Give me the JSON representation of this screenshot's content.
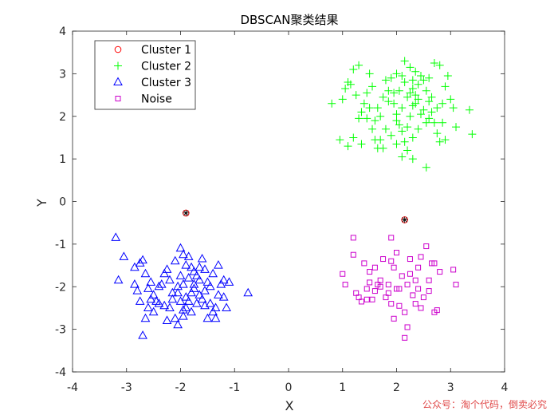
{
  "watermark": "公众号：淘个代码，倒卖必究",
  "chart_data": {
    "type": "scatter",
    "title": "DBSCAN聚类结果",
    "xlabel": "X",
    "ylabel": "Y",
    "xlim": [
      -4,
      4
    ],
    "ylim": [
      -4,
      4
    ],
    "xticks": [
      -4,
      -3,
      -2,
      -1,
      0,
      1,
      2,
      3,
      4
    ],
    "yticks": [
      -4,
      -3,
      -2,
      -1,
      0,
      1,
      2,
      3,
      4
    ],
    "grid": false,
    "legend_position": "top-left",
    "series": [
      {
        "name": "Cluster 1",
        "marker": "circle",
        "color": "#ff0000",
        "points": [
          [
            -1.9,
            -0.27
          ],
          [
            2.15,
            -0.43
          ]
        ]
      },
      {
        "name": "Cluster 2",
        "marker": "plus",
        "color": "#00ff00",
        "points": [
          [
            0.8,
            2.3
          ],
          [
            1.0,
            2.4
          ],
          [
            1.05,
            2.65
          ],
          [
            1.1,
            2.8
          ],
          [
            1.15,
            2.75
          ],
          [
            1.2,
            3.1
          ],
          [
            1.3,
            3.2
          ],
          [
            0.95,
            1.45
          ],
          [
            1.1,
            1.3
          ],
          [
            1.2,
            1.5
          ],
          [
            1.3,
            1.95
          ],
          [
            1.35,
            2.1
          ],
          [
            1.4,
            2.3
          ],
          [
            1.45,
            2.55
          ],
          [
            1.5,
            2.2
          ],
          [
            1.55,
            1.7
          ],
          [
            1.6,
            1.45
          ],
          [
            1.65,
            1.25
          ],
          [
            1.7,
            2.0
          ],
          [
            1.75,
            2.45
          ],
          [
            1.8,
            2.85
          ],
          [
            1.85,
            2.6
          ],
          [
            1.9,
            2.9
          ],
          [
            1.95,
            2.3
          ],
          [
            2.0,
            2.05
          ],
          [
            2.05,
            1.8
          ],
          [
            2.1,
            1.65
          ],
          [
            2.15,
            1.4
          ],
          [
            2.2,
            1.75
          ],
          [
            2.25,
            2.0
          ],
          [
            2.3,
            2.25
          ],
          [
            2.35,
            2.5
          ],
          [
            2.4,
            2.75
          ],
          [
            2.45,
            2.95
          ],
          [
            2.5,
            2.85
          ],
          [
            2.55,
            2.6
          ],
          [
            2.6,
            2.35
          ],
          [
            2.65,
            2.1
          ],
          [
            2.7,
            1.85
          ],
          [
            2.75,
            1.6
          ],
          [
            2.8,
            1.4
          ],
          [
            2.85,
            2.3
          ],
          [
            2.9,
            2.7
          ],
          [
            2.95,
            2.95
          ],
          [
            3.0,
            2.4
          ],
          [
            3.05,
            2.2
          ],
          [
            3.1,
            1.75
          ],
          [
            3.35,
            2.15
          ],
          [
            3.4,
            1.58
          ],
          [
            2.15,
            3.3
          ],
          [
            2.25,
            3.15
          ],
          [
            2.35,
            3.05
          ],
          [
            2.7,
            3.25
          ],
          [
            2.8,
            3.2
          ],
          [
            2.0,
            3.0
          ],
          [
            1.5,
            3.0
          ],
          [
            2.2,
            1.2
          ],
          [
            2.3,
            1.0
          ],
          [
            2.55,
            0.8
          ],
          [
            2.1,
            1.05
          ],
          [
            1.75,
            1.25
          ],
          [
            1.9,
            1.55
          ],
          [
            2.0,
            1.9
          ],
          [
            2.1,
            2.2
          ],
          [
            2.2,
            2.45
          ],
          [
            2.3,
            2.65
          ],
          [
            2.4,
            2.4
          ],
          [
            2.5,
            2.15
          ],
          [
            2.6,
            1.95
          ],
          [
            2.4,
            1.7
          ],
          [
            2.3,
            1.5
          ],
          [
            1.8,
            1.7
          ],
          [
            1.7,
            1.45
          ],
          [
            1.6,
            1.9
          ],
          [
            1.65,
            2.2
          ],
          [
            1.95,
            2.55
          ],
          [
            2.05,
            2.6
          ],
          [
            2.15,
            2.8
          ],
          [
            2.25,
            2.55
          ],
          [
            2.35,
            2.3
          ],
          [
            2.45,
            2.05
          ],
          [
            2.55,
            1.85
          ],
          [
            2.65,
            2.45
          ],
          [
            2.75,
            2.2
          ],
          [
            1.45,
            1.95
          ],
          [
            1.25,
            2.5
          ],
          [
            1.35,
            1.35
          ],
          [
            2.0,
            1.35
          ],
          [
            2.85,
            1.85
          ],
          [
            2.9,
            1.45
          ],
          [
            2.1,
            2.95
          ],
          [
            2.3,
            2.85
          ],
          [
            1.85,
            2.35
          ],
          [
            1.55,
            2.7
          ],
          [
            2.6,
            2.9
          ]
        ]
      },
      {
        "name": "Cluster 3",
        "marker": "triangle",
        "color": "#0000ff",
        "points": [
          [
            -3.2,
            -0.85
          ],
          [
            -3.15,
            -1.85
          ],
          [
            -3.05,
            -1.3
          ],
          [
            -2.85,
            -1.55
          ],
          [
            -2.75,
            -1.45
          ],
          [
            -2.7,
            -1.38
          ],
          [
            -2.65,
            -1.7
          ],
          [
            -2.6,
            -2.05
          ],
          [
            -2.55,
            -1.9
          ],
          [
            -2.5,
            -2.2
          ],
          [
            -2.45,
            -2.35
          ],
          [
            -2.4,
            -2.0
          ],
          [
            -2.35,
            -1.95
          ],
          [
            -2.3,
            -2.45
          ],
          [
            -2.25,
            -1.6
          ],
          [
            -2.2,
            -1.85
          ],
          [
            -2.15,
            -2.15
          ],
          [
            -2.1,
            -1.4
          ],
          [
            -2.05,
            -2.0
          ],
          [
            -2.0,
            -1.75
          ],
          [
            -1.95,
            -2.55
          ],
          [
            -1.9,
            -2.25
          ],
          [
            -1.85,
            -1.3
          ],
          [
            -1.8,
            -1.55
          ],
          [
            -1.75,
            -2.05
          ],
          [
            -1.7,
            -2.4
          ],
          [
            -1.65,
            -1.85
          ],
          [
            -1.6,
            -2.3
          ],
          [
            -1.55,
            -1.6
          ],
          [
            -1.5,
            -2.75
          ],
          [
            -1.45,
            -2.0
          ],
          [
            -1.4,
            -1.7
          ],
          [
            -1.35,
            -2.5
          ],
          [
            -1.3,
            -2.2
          ],
          [
            -1.25,
            -1.95
          ],
          [
            -1.2,
            -1.85
          ],
          [
            -1.15,
            -2.5
          ],
          [
            -0.75,
            -2.15
          ],
          [
            -2.7,
            -3.15
          ],
          [
            -2.65,
            -2.75
          ],
          [
            -2.6,
            -2.5
          ],
          [
            -2.55,
            -2.3
          ],
          [
            -2.1,
            -2.75
          ],
          [
            -2.05,
            -2.9
          ],
          [
            -1.95,
            -2.7
          ],
          [
            -1.9,
            -2.5
          ],
          [
            -1.85,
            -2.35
          ],
          [
            -1.8,
            -2.15
          ],
          [
            -1.75,
            -1.95
          ],
          [
            -1.7,
            -1.75
          ],
          [
            -1.65,
            -1.55
          ],
          [
            -1.6,
            -1.35
          ],
          [
            -1.55,
            -2.1
          ],
          [
            -1.5,
            -1.9
          ],
          [
            -1.45,
            -2.4
          ],
          [
            -1.4,
            -2.6
          ],
          [
            -2.0,
            -1.1
          ],
          [
            -1.95,
            -1.25
          ],
          [
            -1.9,
            -1.5
          ],
          [
            -2.3,
            -1.7
          ],
          [
            -2.4,
            -2.4
          ],
          [
            -2.2,
            -2.5
          ],
          [
            -2.15,
            -2.3
          ],
          [
            -2.05,
            -2.15
          ],
          [
            -1.95,
            -1.95
          ],
          [
            -1.85,
            -1.8
          ],
          [
            -1.75,
            -1.65
          ],
          [
            -1.65,
            -2.2
          ],
          [
            -1.55,
            -2.45
          ],
          [
            -2.5,
            -2.6
          ],
          [
            -2.75,
            -2.35
          ],
          [
            -2.8,
            -2.1
          ],
          [
            -1.3,
            -1.5
          ],
          [
            -1.2,
            -2.25
          ],
          [
            -1.1,
            -1.9
          ],
          [
            -2.25,
            -2.8
          ],
          [
            -2.0,
            -2.35
          ],
          [
            -1.8,
            -2.6
          ],
          [
            -1.35,
            -2.75
          ],
          [
            -2.85,
            -1.95
          ]
        ]
      },
      {
        "name": "Noise",
        "marker": "square",
        "color": "#cc00cc",
        "points": [
          [
            1.0,
            -1.7
          ],
          [
            1.05,
            -1.95
          ],
          [
            1.2,
            -0.85
          ],
          [
            1.2,
            -1.25
          ],
          [
            1.25,
            -2.15
          ],
          [
            1.3,
            -2.25
          ],
          [
            1.35,
            -2.35
          ],
          [
            1.4,
            -1.45
          ],
          [
            1.45,
            -2.05
          ],
          [
            1.5,
            -1.65
          ],
          [
            1.55,
            -2.3
          ],
          [
            1.6,
            -1.55
          ],
          [
            1.65,
            -1.95
          ],
          [
            1.7,
            -2.0
          ],
          [
            1.75,
            -1.35
          ],
          [
            1.8,
            -2.25
          ],
          [
            1.85,
            -1.95
          ],
          [
            1.9,
            -0.85
          ],
          [
            1.95,
            -1.55
          ],
          [
            2.0,
            -2.05
          ],
          [
            2.05,
            -2.45
          ],
          [
            2.1,
            -1.75
          ],
          [
            2.15,
            -2.6
          ],
          [
            2.2,
            -2.95
          ],
          [
            2.25,
            -1.35
          ],
          [
            2.3,
            -2.2
          ],
          [
            2.35,
            -1.85
          ],
          [
            2.4,
            -1.55
          ],
          [
            2.45,
            -2.5
          ],
          [
            2.5,
            -2.25
          ],
          [
            2.55,
            -1.05
          ],
          [
            2.6,
            -1.85
          ],
          [
            2.65,
            -1.45
          ],
          [
            2.7,
            -2.6
          ],
          [
            2.75,
            -2.55
          ],
          [
            2.8,
            -1.65
          ],
          [
            3.05,
            -1.6
          ],
          [
            3.1,
            -1.95
          ],
          [
            2.15,
            -3.2
          ],
          [
            1.95,
            -2.75
          ],
          [
            1.85,
            -2.15
          ],
          [
            2.05,
            -2.05
          ],
          [
            2.25,
            -1.7
          ],
          [
            2.45,
            -1.3
          ],
          [
            1.7,
            -1.85
          ],
          [
            1.5,
            -1.9
          ],
          [
            1.45,
            -2.3
          ],
          [
            1.9,
            -1.4
          ],
          [
            2.0,
            -1.2
          ],
          [
            2.35,
            -2.4
          ],
          [
            2.6,
            -2.1
          ],
          [
            2.2,
            -1.95
          ],
          [
            1.6,
            -2.1
          ],
          [
            1.9,
            -2.4
          ],
          [
            2.4,
            -2.05
          ],
          [
            2.7,
            -1.45
          ]
        ]
      }
    ]
  }
}
